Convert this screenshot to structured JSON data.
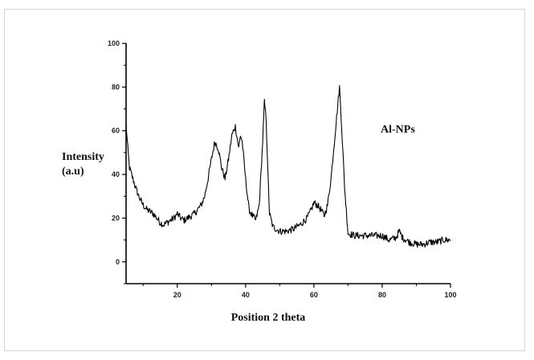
{
  "chart_data": {
    "type": "line",
    "title": "",
    "xlabel": "Position 2 theta",
    "ylabel_line1": "Intensity",
    "ylabel_line2": "(a.u)",
    "annotation": "Al-NPs",
    "xlim": [
      5,
      100
    ],
    "ylim": [
      -10,
      100
    ],
    "x_ticks": [
      20,
      40,
      60,
      80,
      100
    ],
    "x_tick_labels": [
      "20",
      "40",
      "60",
      "80",
      "100"
    ],
    "y_ticks": [
      0,
      20,
      40,
      60,
      80,
      100
    ],
    "y_tick_labels": [
      "0",
      "20",
      "40",
      "60",
      "80",
      "100"
    ],
    "grid": false,
    "line_color": "#000000",
    "series": [
      {
        "x": [
          5,
          5.5,
          6,
          7,
          8,
          9,
          10,
          11,
          12,
          13,
          14,
          15,
          16,
          17,
          18,
          19,
          20,
          21,
          22,
          23,
          24,
          25,
          26,
          27,
          28,
          29,
          30,
          31,
          32,
          33,
          34,
          35,
          36,
          37,
          37.5,
          38,
          38.5,
          39,
          40,
          41,
          42,
          43,
          44,
          45,
          45.5,
          46,
          46.5,
          47,
          48,
          49,
          50,
          52,
          54,
          56,
          58,
          59,
          60,
          61,
          62,
          63,
          64,
          65,
          66,
          67,
          67.5,
          68,
          69,
          70,
          72,
          74,
          76,
          78,
          80,
          82,
          84,
          85,
          86,
          88,
          90,
          92,
          94,
          96,
          98,
          100
        ],
        "y": [
          63,
          52,
          43,
          38,
          33,
          29,
          26,
          24,
          23,
          22,
          20,
          18,
          17,
          18,
          19,
          20,
          22,
          20,
          19,
          20,
          21,
          22,
          24,
          26,
          30,
          38,
          47,
          55,
          52,
          43,
          38,
          47,
          58,
          62,
          57,
          52,
          58,
          55,
          38,
          24,
          21,
          19,
          26,
          55,
          73,
          66,
          42,
          22,
          16,
          15,
          14,
          14,
          15,
          17,
          20,
          23,
          27,
          26,
          24,
          21,
          26,
          38,
          55,
          72,
          80,
          66,
          34,
          13,
          12,
          12,
          12,
          12,
          12,
          10,
          11,
          14,
          11,
          9,
          8,
          8,
          9,
          9,
          10,
          10
        ]
      }
    ]
  }
}
